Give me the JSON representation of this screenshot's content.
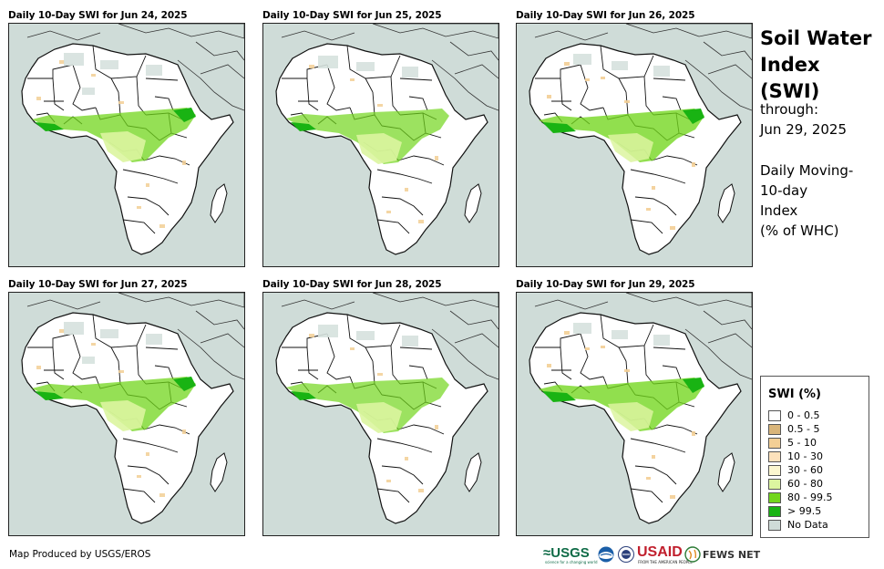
{
  "panels": [
    {
      "title": "Daily 10-Day SWI for Jun 24, 2025"
    },
    {
      "title": "Daily 10-Day SWI for Jun 25, 2025"
    },
    {
      "title": "Daily 10-Day SWI for Jun 26, 2025"
    },
    {
      "title": "Daily 10-Day SWI for Jun 27, 2025"
    },
    {
      "title": "Daily 10-Day SWI for Jun 28, 2025"
    },
    {
      "title": "Daily 10-Day SWI for Jun 29, 2025"
    }
  ],
  "side": {
    "title_line1": "Soil Water",
    "title_line2": "Index (SWI)",
    "through_label": "through:",
    "through_date": "Jun 29, 2025",
    "desc_line1": "Daily Moving-",
    "desc_line2": "10-day",
    "desc_line3": "Index",
    "desc_line4": "(% of WHC)"
  },
  "legend": {
    "title": "SWI (%)",
    "items": [
      {
        "label": "0 - 0.5",
        "color": "#ffffff"
      },
      {
        "label": "0.5 - 5",
        "color": "#d9b57a"
      },
      {
        "label": "5 - 10",
        "color": "#f3cf95"
      },
      {
        "label": "10 - 30",
        "color": "#fde2bc"
      },
      {
        "label": "30 - 60",
        "color": "#fbf6cf"
      },
      {
        "label": "60 - 80",
        "color": "#dcf5a0"
      },
      {
        "label": "80 - 99.5",
        "color": "#72d61c"
      },
      {
        "label": "> 99.5",
        "color": "#19b313"
      },
      {
        "label": "No Data",
        "color": "#cfdcd8"
      }
    ]
  },
  "footer": {
    "credit": "Map Produced by USGS/EROS",
    "usgs": "≈USGS",
    "usgs_tagline": "science for a changing world",
    "usaid": "USAID",
    "usaid_tagline": "FROM THE AMERICAN PEOPLE",
    "fews": "FEWS NET"
  }
}
